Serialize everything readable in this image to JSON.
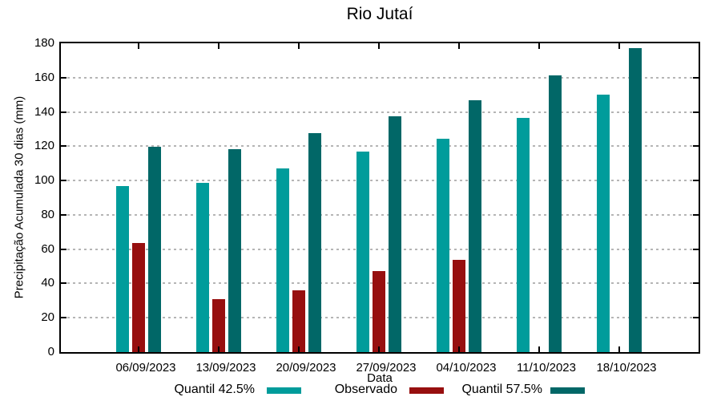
{
  "chart_data": {
    "type": "bar",
    "title": "Rio Jutaí",
    "xlabel": "Data",
    "ylabel": "Precipitação Acumulada 30 dias (mm)",
    "ylim": [
      0,
      180
    ],
    "ytick_step": 20,
    "grid": true,
    "legend_position": "bottom",
    "categories": [
      "06/09/2023",
      "13/09/2023",
      "20/09/2023",
      "27/09/2023",
      "04/10/2023",
      "11/10/2023",
      "18/10/2023"
    ],
    "series": [
      {
        "name": "Quantil 42.5%",
        "color": "#009C9B",
        "values": [
          97,
          98.5,
          107,
          117,
          124.5,
          136.5,
          150
        ]
      },
      {
        "name": "Observado",
        "color": "#970F0F",
        "values": [
          63.5,
          31,
          36,
          47,
          54,
          null,
          null
        ]
      },
      {
        "name": "Quantil 57.5%",
        "color": "#016767",
        "values": [
          119.5,
          118.5,
          127.5,
          137.5,
          147,
          161.5,
          177
        ]
      }
    ]
  },
  "colors": {
    "background": "#FFFFFF",
    "axis": "#000000",
    "grid": "#B5B5B5",
    "text": "#000000"
  }
}
